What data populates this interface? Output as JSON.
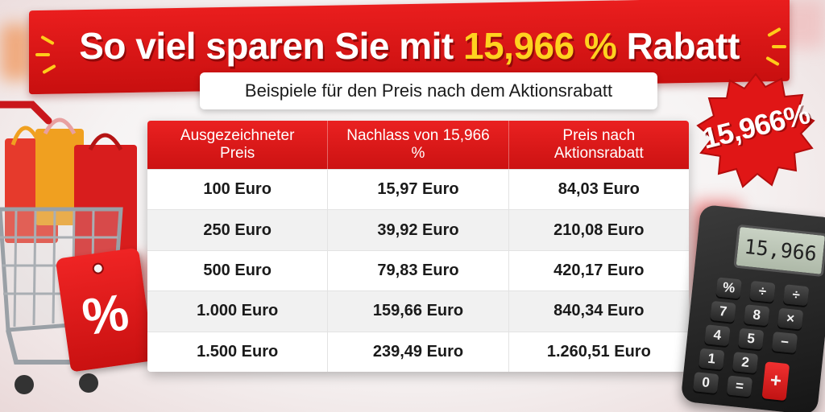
{
  "title": {
    "prefix": "So viel sparen Sie mit ",
    "highlight": "15,966 %",
    "suffix": " Rabatt"
  },
  "subtitle": "Beispiele für den Preis nach dem Aktionsrabatt",
  "table": {
    "headers": [
      "Ausgezeichneter Preis",
      "Nachlass von 15,966 %",
      "Preis nach Aktionsrabatt"
    ],
    "rows": [
      [
        "100 Euro",
        "15,97 Euro",
        "84,03 Euro"
      ],
      [
        "250 Euro",
        "39,92 Euro",
        "210,08 Euro"
      ],
      [
        "500 Euro",
        "79,83 Euro",
        "420,17 Euro"
      ],
      [
        "1.000 Euro",
        "159,66 Euro",
        "840,34 Euro"
      ],
      [
        "1.500 Euro",
        "239,49 Euro",
        "1.260,51 Euro"
      ]
    ]
  },
  "badge": "15,966%",
  "calculator": {
    "display": "15,966",
    "keys": [
      "%",
      "÷",
      "÷",
      "7",
      "8",
      "×",
      "4",
      "5",
      "−",
      "1",
      "2",
      "0",
      "=",
      "+"
    ]
  },
  "price_tag": "%",
  "colors": {
    "accent_red": "#d91515",
    "highlight_yellow": "#ffd21f",
    "badge_red": "#e01616"
  }
}
